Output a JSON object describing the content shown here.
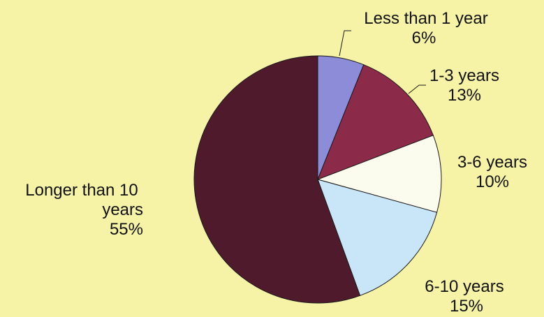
{
  "chart_data": {
    "type": "pie",
    "title": "",
    "start_angle_deg": 0,
    "direction": "clockwise",
    "slices": [
      {
        "name": "Less than 1 year",
        "value": 6,
        "label": "6%",
        "color": "#8c8cd8"
      },
      {
        "name": "1-3 years",
        "value": 13,
        "label": "13%",
        "color": "#8c2a4a"
      },
      {
        "name": "3-6 years",
        "value": 10,
        "label": "10%",
        "color": "#fbfbee"
      },
      {
        "name": "6-10 years",
        "value": 15,
        "label": "15%",
        "color": "#c8e6f8"
      },
      {
        "name": "Longer than 10 years",
        "value": 55,
        "label": "55%",
        "color": "#4e1a2c"
      }
    ]
  }
}
